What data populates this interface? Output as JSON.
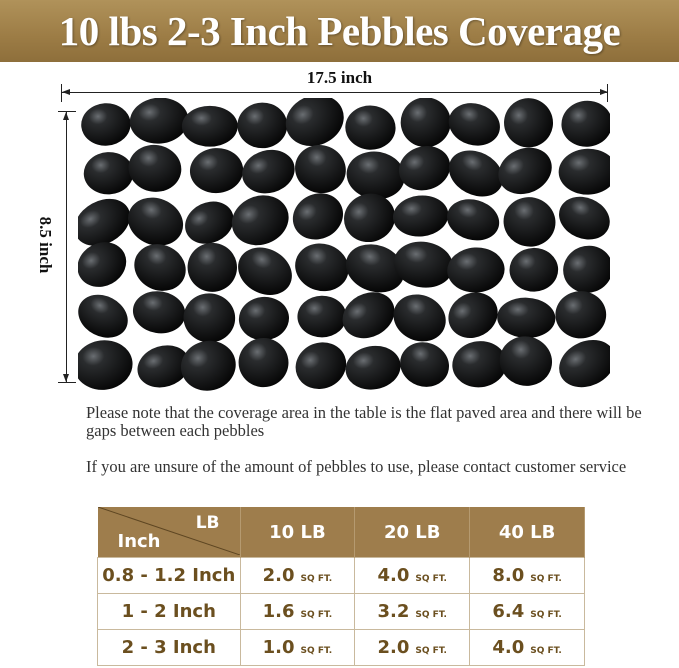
{
  "banner": {
    "title": "10 lbs 2-3 Inch Pebbles Coverage",
    "color": "#a08048"
  },
  "dimensions": {
    "width": "17.5 inch",
    "height": "8.5 inch"
  },
  "notes": [
    "Please note that the coverage area in the table is the flat paved area and there will be gaps between each pebbles",
    "If you are unsure of the amount of pebbles to use, please contact customer service"
  ],
  "table": {
    "corner_top": "LB",
    "corner_bottom": "Inch",
    "columns": [
      "10 LB",
      "20 LB",
      "40 LB"
    ],
    "unit": "SQ FT.",
    "rows": [
      {
        "size": "0.8 - 1.2 Inch",
        "values": [
          "2.0",
          "4.0",
          "8.0"
        ]
      },
      {
        "size": "1 - 2 Inch",
        "values": [
          "1.6",
          "3.2",
          "6.4"
        ]
      },
      {
        "size": "2 - 3 Inch",
        "values": [
          "1.0",
          "2.0",
          "4.0"
        ]
      }
    ],
    "header_color": "#9e7d4c",
    "text_color": "#6b4f1f"
  }
}
